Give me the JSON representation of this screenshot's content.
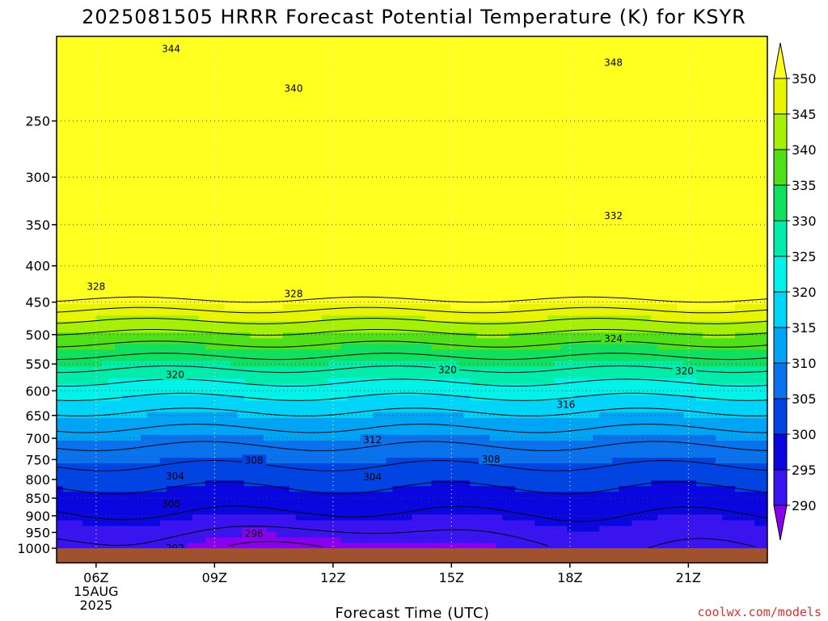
{
  "chart_data": {
    "type": "heatmap",
    "title": "2025081505 HRRR Forecast Potential Temperature (K) for KSYR",
    "xlabel": "Forecast Time (UTC)",
    "ylabel": "",
    "x_ticks": [
      {
        "hour": 6,
        "label": "06Z",
        "sub": [
          "15AUG",
          "2025"
        ]
      },
      {
        "hour": 9,
        "label": "09Z",
        "sub": []
      },
      {
        "hour": 12,
        "label": "12Z",
        "sub": []
      },
      {
        "hour": 15,
        "label": "15Z",
        "sub": []
      },
      {
        "hour": 18,
        "label": "18Z",
        "sub": []
      },
      {
        "hour": 21,
        "label": "21Z",
        "sub": []
      }
    ],
    "xlim": [
      5,
      23
    ],
    "y_ticks": [
      250,
      300,
      350,
      400,
      450,
      500,
      550,
      600,
      650,
      700,
      750,
      800,
      850,
      900,
      950,
      1000
    ],
    "ylim_pressure_hPa": [
      1000,
      190
    ],
    "y_scale": "log-pressure",
    "grid": "dotted",
    "colorbar": {
      "levels": [
        290,
        295,
        300,
        305,
        310,
        315,
        320,
        325,
        330,
        335,
        340,
        345,
        350
      ],
      "colors": [
        "#8800ee",
        "#3a14f0",
        "#0a06e0",
        "#0044e4",
        "#0a72ec",
        "#00a4f4",
        "#00d4f8",
        "#00f2e8",
        "#00ecaa",
        "#10e060",
        "#50e018",
        "#a6f006",
        "#e8f400",
        "#ffff20"
      ]
    },
    "contour_interval_K": 4,
    "contour_labels": [
      {
        "value": 344,
        "hour": 7.9,
        "p": 198
      },
      {
        "value": 348,
        "hour": 19.1,
        "p": 207
      },
      {
        "value": 340,
        "hour": 11.0,
        "p": 225
      },
      {
        "value": 332,
        "hour": 19.1,
        "p": 340
      },
      {
        "value": 328,
        "hour": 6.0,
        "p": 428
      },
      {
        "value": 328,
        "hour": 11.0,
        "p": 438
      },
      {
        "value": 324,
        "hour": 19.1,
        "p": 507
      },
      {
        "value": 320,
        "hour": 8.0,
        "p": 570
      },
      {
        "value": 320,
        "hour": 14.9,
        "p": 561
      },
      {
        "value": 320,
        "hour": 20.9,
        "p": 563
      },
      {
        "value": 316,
        "hour": 17.9,
        "p": 628
      },
      {
        "value": 312,
        "hour": 13.0,
        "p": 704
      },
      {
        "value": 308,
        "hour": 10.0,
        "p": 752
      },
      {
        "value": 308,
        "hour": 16.0,
        "p": 749
      },
      {
        "value": 304,
        "hour": 8.0,
        "p": 792
      },
      {
        "value": 304,
        "hour": 13.0,
        "p": 794
      },
      {
        "value": 300,
        "hour": 7.9,
        "p": 867
      },
      {
        "value": 296,
        "hour": 10.0,
        "p": 954
      },
      {
        "value": 292,
        "hour": 8.0,
        "p": 1000
      }
    ]
  },
  "credit": "coolwx.com/models"
}
